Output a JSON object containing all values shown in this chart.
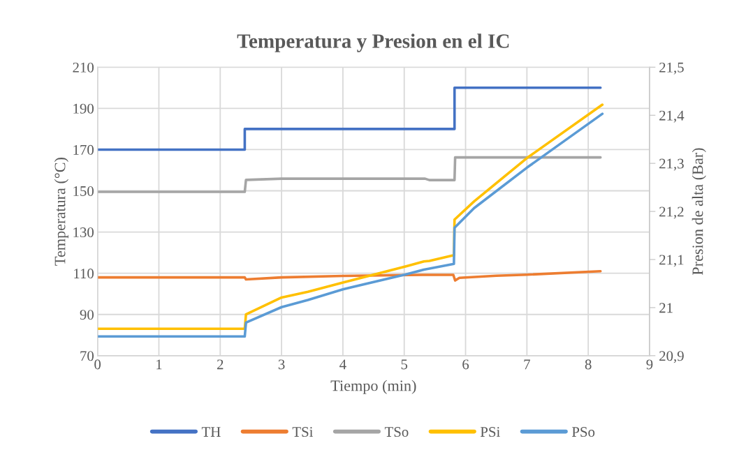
{
  "chart_data": {
    "type": "line",
    "title": "Temperatura y Presion en el IC",
    "xlabel": "Tiempo (min)",
    "ylabel": "Temperatura (°C)",
    "y2label": "Presion de alta (Bar)",
    "xlim": [
      0,
      9
    ],
    "xticks": [
      0,
      1,
      2,
      3,
      4,
      5,
      6,
      7,
      8,
      9
    ],
    "ylim": [
      70,
      210
    ],
    "yticks": [
      70,
      90,
      110,
      130,
      150,
      170,
      190,
      210
    ],
    "y2lim": [
      20.9,
      21.5
    ],
    "y2ticks": [
      {
        "value": 20.9,
        "label": "20,9"
      },
      {
        "value": 21.0,
        "label": "21"
      },
      {
        "value": 21.1,
        "label": "21,1"
      },
      {
        "value": 21.2,
        "label": "21,2"
      },
      {
        "value": 21.3,
        "label": "21,3"
      },
      {
        "value": 21.4,
        "label": "21,4"
      },
      {
        "value": 21.5,
        "label": "21,5"
      }
    ],
    "grid": true,
    "legend": "bottom",
    "marker": "none",
    "line_style": "solid",
    "series": [
      {
        "name": "TH",
        "color": "#4472c4",
        "x": [
          0,
          2.4,
          2.4,
          5.82,
          5.82,
          8.2
        ],
        "values": [
          170,
          170,
          180,
          180,
          200,
          200
        ]
      },
      {
        "name": "TSi",
        "color": "#ed7d31",
        "x": [
          0,
          2.4,
          2.42,
          3,
          4,
          5.3,
          5.8,
          5.83,
          5.9,
          6.5,
          7,
          8.2
        ],
        "values": [
          108,
          108,
          107,
          108,
          108.7,
          109.2,
          109.2,
          106.5,
          107.8,
          108.8,
          109.3,
          111
        ]
      },
      {
        "name": "TSo",
        "color": "#a5a5a5",
        "x": [
          0,
          2.4,
          2.42,
          3,
          5.34,
          5.41,
          5.82,
          5.83,
          8.2
        ],
        "values": [
          149.5,
          149.5,
          155.3,
          155.9,
          155.9,
          155.2,
          155.2,
          166.2,
          166.2
        ]
      },
      {
        "name": "PSi",
        "color": "#ffc000",
        "axis": "y2",
        "x": [
          0,
          2.4,
          2.42,
          3,
          3.43,
          4,
          5.03,
          5.32,
          5.41,
          5.81,
          5.82,
          6.14,
          7,
          8.23
        ],
        "values": [
          20.956,
          20.956,
          20.986,
          21.021,
          21.033,
          21.052,
          21.086,
          21.096,
          21.097,
          21.109,
          21.183,
          21.221,
          21.311,
          21.422
        ]
      },
      {
        "name": "PSo",
        "color": "#5b9bd5",
        "axis": "y2",
        "x": [
          0,
          2.4,
          2.42,
          3,
          3.43,
          4,
          5.03,
          5.32,
          5.41,
          5.81,
          5.82,
          6.14,
          7,
          8.23
        ],
        "values": [
          20.94,
          20.94,
          20.969,
          21.001,
          21.016,
          21.038,
          21.069,
          21.079,
          21.081,
          21.091,
          21.166,
          21.207,
          21.291,
          21.403
        ]
      }
    ]
  }
}
